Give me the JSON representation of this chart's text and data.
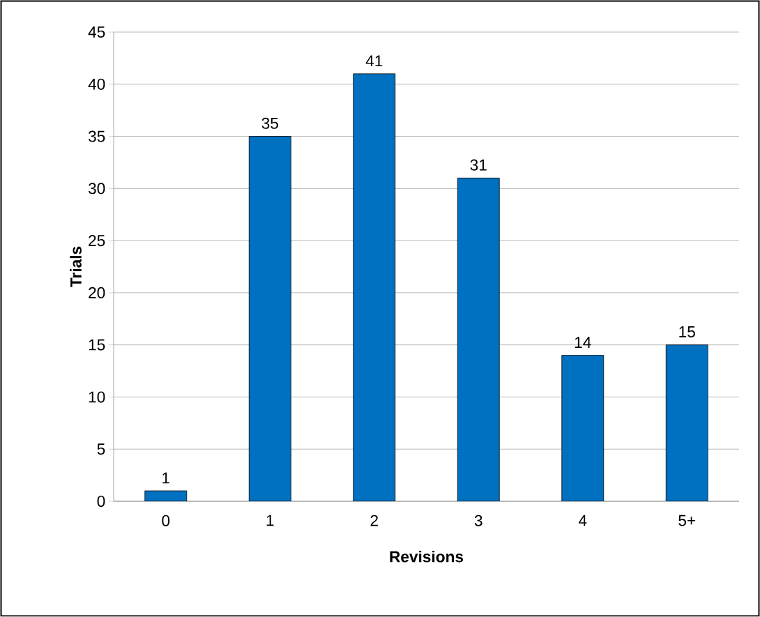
{
  "chart_data": {
    "type": "bar",
    "xlabel": "Revisions",
    "ylabel": "Trials",
    "categories": [
      "0",
      "1",
      "2",
      "3",
      "4",
      "5+"
    ],
    "values": [
      1,
      35,
      41,
      31,
      14,
      15
    ],
    "color": "#0070c0",
    "ylim": [
      0,
      45
    ],
    "yticks": [
      0,
      5,
      10,
      15,
      20,
      25,
      30,
      35,
      40,
      45
    ],
    "grid": "y",
    "data_labels": true
  }
}
